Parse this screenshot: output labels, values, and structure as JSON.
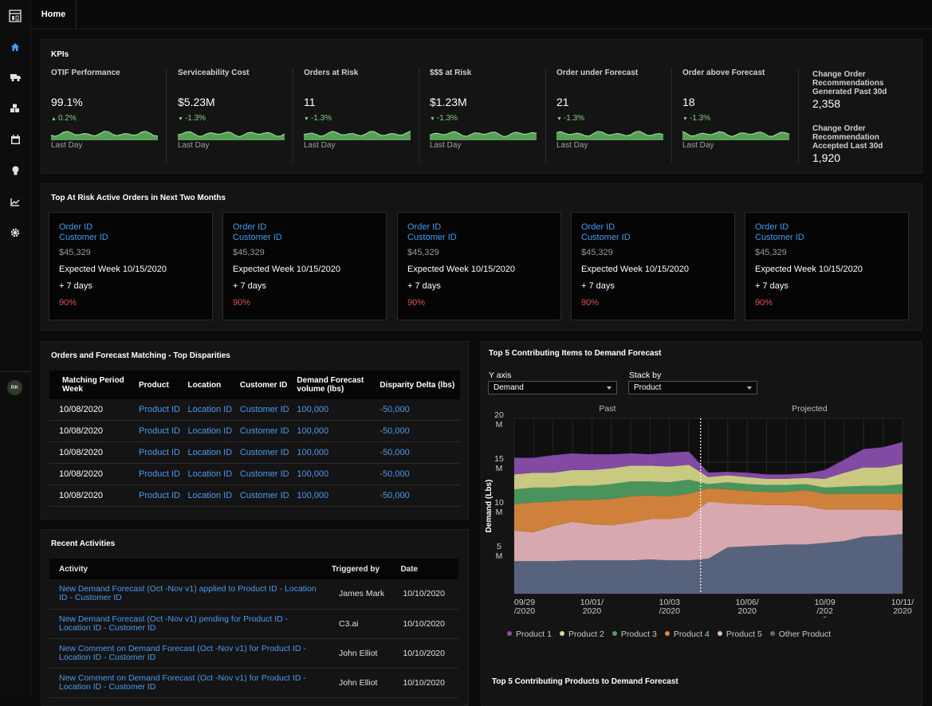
{
  "sidebar": {
    "avatar": "RK"
  },
  "topbar": {
    "home_tab": "Home"
  },
  "kpis": {
    "title": "KPIs",
    "items": [
      {
        "label": "OTIF Performance",
        "value": "99.1%",
        "change": "0.2%",
        "direction": "up",
        "period": "Last Day"
      },
      {
        "label": "Serviceability Cost",
        "value": "$5.23M",
        "change": "-1.3%",
        "direction": "down",
        "period": "Last Day"
      },
      {
        "label": "Orders at Risk",
        "value": "11",
        "change": "-1.3%",
        "direction": "down",
        "period": "Last Day"
      },
      {
        "label": "$$$ at Risk",
        "value": "$1.23M",
        "change": "-1.3%",
        "direction": "down",
        "period": "Last Day"
      },
      {
        "label": "Order under Forecast",
        "value": "21",
        "change": "-1.3%",
        "direction": "down",
        "period": "Last Day"
      },
      {
        "label": "Order above Forecast",
        "value": "18",
        "change": "-1.3%",
        "direction": "down",
        "period": "Last Day"
      }
    ],
    "change_orders": [
      {
        "label": "Change Order Recommendations Generated Past 30d",
        "value": "2,358"
      },
      {
        "label": "Change Order Recommendation Accepted Last 30d",
        "value": "1,920"
      }
    ]
  },
  "at_risk": {
    "title": "Top At Risk Active Orders in Next Two Months",
    "cards": [
      {
        "order": "Order ID",
        "customer": "Customer ID",
        "amount": "$45,329",
        "week": "Expected Week 10/15/2020",
        "days": "+ 7 days",
        "risk": "90%"
      },
      {
        "order": "Order ID",
        "customer": "Customer ID",
        "amount": "$45,329",
        "week": "Expected Week 10/15/2020",
        "days": "+ 7 days",
        "risk": "90%"
      },
      {
        "order": "Order ID",
        "customer": "Customer ID",
        "amount": "$45,329",
        "week": "Expected Week 10/15/2020",
        "days": "+ 7 days",
        "risk": "90%"
      },
      {
        "order": "Order ID",
        "customer": "Customer ID",
        "amount": "$45,329",
        "week": "Expected Week 10/15/2020",
        "days": "+ 7 days",
        "risk": "90%"
      },
      {
        "order": "Order ID",
        "customer": "Customer ID",
        "amount": "$45,329",
        "week": "Expected Week 10/15/2020",
        "days": "+ 7 days",
        "risk": "90%"
      }
    ]
  },
  "matching": {
    "title": "Orders and Forecast Matching - Top Disparities",
    "headers": [
      "Matching Period Week",
      "Product",
      "Location",
      "Customer ID",
      "Demand Forecast volume (lbs)",
      "Disparity Delta (lbs)"
    ],
    "rows": [
      [
        "10/08/2020",
        "Product ID",
        "Location ID",
        "Customer ID",
        "100,000",
        "-50,000"
      ],
      [
        "10/08/2020",
        "Product ID",
        "Location ID",
        "Customer ID",
        "100,000",
        "-50,000"
      ],
      [
        "10/08/2020",
        "Product ID",
        "Location ID",
        "Customer ID",
        "100,000",
        "-50,000"
      ],
      [
        "10/08/2020",
        "Product ID",
        "Location ID",
        "Customer ID",
        "100,000",
        "-50,000"
      ],
      [
        "10/08/2020",
        "Product ID",
        "Location ID",
        "Customer ID",
        "100,000",
        "-50,000"
      ]
    ]
  },
  "activities": {
    "title": "Recent Activities",
    "headers": [
      "Activity",
      "Triggered by",
      "Date"
    ],
    "rows": [
      [
        "New Demand Forecast (Oct -Nov v1) applied to Product ID - Location ID - Customer ID",
        "James Mark",
        "10/10/2020"
      ],
      [
        "New Demand Forecast (Oct -Nov v1) pending for Product ID - Location ID - Customer ID",
        "C3.ai",
        "10/10/2020"
      ],
      [
        "New Comment on Demand Forecast (Oct -Nov v1) for Product ID - Location ID - Customer ID",
        "John Elliot",
        "10/10/2020"
      ],
      [
        "New Comment on Demand Forecast (Oct -Nov v1) for Product ID - Location ID - Customer ID",
        "John Elliot",
        "10/10/2020"
      ]
    ]
  },
  "demand": {
    "title": "Top 5 Contributing Items to Demand Forecast",
    "y_axis_label": "Y axis",
    "y_axis_value": "Demand",
    "stack_label": "Stack by",
    "stack_value": "Product",
    "past_label": "Past",
    "projected_label": "Projected",
    "footer_title": "Top 5 Contributing Products to Demand Forecast"
  },
  "chart_data": {
    "type": "area",
    "ylabel": "Demand (Lbs)",
    "ylim": [
      0,
      20
    ],
    "y_ticks": [
      "20 M",
      "15 M",
      "10 M",
      "5 M"
    ],
    "x_tick_labels": [
      "09/29 /2020",
      "10/01/ 2020",
      "10/03 /2020",
      "10/06/ 2020",
      "10/09 /202 0",
      "10/11/ 2020"
    ],
    "x": [
      0,
      1,
      2,
      3,
      4,
      5,
      6,
      7,
      8,
      9,
      10,
      11,
      12,
      13,
      14,
      15,
      16,
      17,
      18,
      19,
      20
    ],
    "series": [
      {
        "name": "Other Product",
        "color": "#5d6a85",
        "values": [
          3.7,
          3.7,
          3.7,
          3.8,
          3.8,
          3.8,
          3.8,
          3.9,
          3.8,
          3.8,
          4.0,
          5.3,
          5.4,
          5.5,
          5.6,
          5.6,
          5.8,
          6.0,
          6.5,
          6.6,
          6.8
        ]
      },
      {
        "name": "Product 5",
        "color": "#e8b6bc",
        "values": [
          3.5,
          3.3,
          4.0,
          4.4,
          4.1,
          4.0,
          4.3,
          4.6,
          4.7,
          5.0,
          6.5,
          5.0,
          4.8,
          4.6,
          4.5,
          4.4,
          3.8,
          3.6,
          3.1,
          3.0,
          2.7
        ]
      },
      {
        "name": "Product 4",
        "color": "#e08a3e",
        "values": [
          3.0,
          3.4,
          2.8,
          2.5,
          2.8,
          3.0,
          3.0,
          2.7,
          2.6,
          2.6,
          1.5,
          1.6,
          1.5,
          1.5,
          1.5,
          1.8,
          1.8,
          1.8,
          1.8,
          1.8,
          1.9
        ]
      },
      {
        "name": "Product 3",
        "color": "#4f9e63",
        "values": [
          1.7,
          1.7,
          1.6,
          1.6,
          1.6,
          1.7,
          1.7,
          1.6,
          1.6,
          1.6,
          0.5,
          0.8,
          0.8,
          0.8,
          0.8,
          0.7,
          0.7,
          0.8,
          0.9,
          0.9,
          1.1
        ]
      },
      {
        "name": "Product 2",
        "color": "#d9d98c",
        "values": [
          1.7,
          1.7,
          1.7,
          1.8,
          1.8,
          1.8,
          1.8,
          1.8,
          1.8,
          1.7,
          0.8,
          0.8,
          0.8,
          0.7,
          0.7,
          0.7,
          1.0,
          1.6,
          2.1,
          2.1,
          2.3
        ]
      },
      {
        "name": "Product 1",
        "color": "#8c4fb0",
        "values": [
          1.9,
          1.7,
          2.0,
          1.9,
          1.8,
          1.6,
          1.4,
          1.3,
          1.6,
          1.5,
          0.5,
          0.4,
          0.5,
          0.5,
          0.5,
          0.5,
          1.0,
          1.5,
          2.1,
          2.3,
          2.5
        ]
      }
    ],
    "legend": [
      "Product 1",
      "Product 2",
      "Product 3",
      "Product 4",
      "Product 5",
      "Other Product"
    ],
    "divider_index": 9
  },
  "colors": {
    "link": "#4a9bf0",
    "risk": "#e05050",
    "up": "#7fd37f",
    "spark": "#6fcf6f"
  }
}
